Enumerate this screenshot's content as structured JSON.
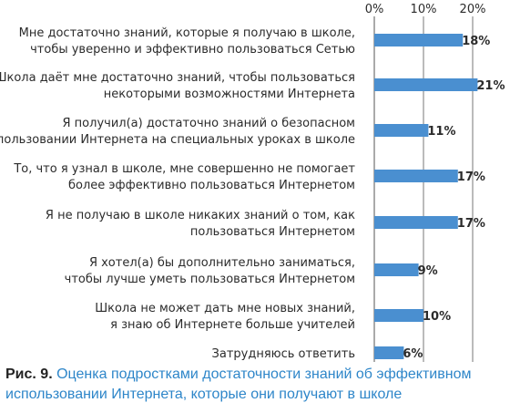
{
  "chart_data": {
    "type": "bar",
    "orientation": "horizontal",
    "categories": [
      [
        "Мне достаточно знаний, которые я получаю в школе,",
        "чтобы уверенно и эффективно пользоваться Сетью"
      ],
      [
        "Школа даёт мне достаточно знаний, чтобы пользоваться",
        "некоторыми возможностями Интернета"
      ],
      [
        "Я получил(а) достаточно знаний о безопасном",
        "использовании Интернета на специальных уроках в школе"
      ],
      [
        "То, что я узнал в школе, мне совершенно не помогает",
        "более эффективно пользоваться Интернетом"
      ],
      [
        "Я не получаю в школе никаких знаний о том, как",
        "пользоваться Интернетом"
      ],
      [
        "Я хотел(а) бы дополнительно заниматься,",
        "чтобы лучше уметь пользоваться Интернетом"
      ],
      [
        "Школа не может дать мне новых знаний,",
        "я знаю об Интернете больше учителей"
      ],
      [
        "Затрудняюсь ответить"
      ]
    ],
    "values": [
      18,
      21,
      11,
      17,
      17,
      9,
      10,
      6
    ],
    "value_labels": [
      "18%",
      "21%",
      "11%",
      "17%",
      "17%",
      "9%",
      "10%",
      "6%"
    ],
    "xlim": [
      0,
      20
    ],
    "xticks": [
      "0%",
      "10%",
      "20%"
    ],
    "bar_color": "#4a8fd0",
    "grid": true
  },
  "caption": {
    "label": "Рис. 9.",
    "text": "Оценка подростками достаточности знаний об эффективном использовании Интернета, которые они получают в школе"
  }
}
